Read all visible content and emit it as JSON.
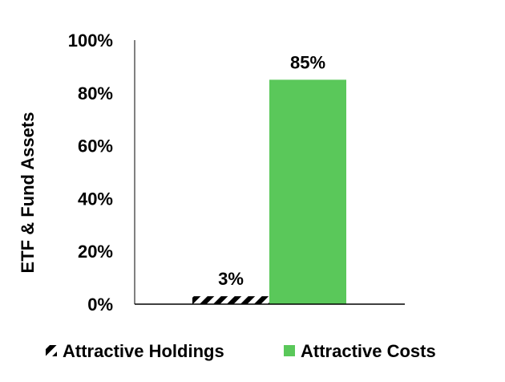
{
  "chart_data": {
    "type": "bar",
    "ylabel": "ETF & Fund Assets",
    "ylim": [
      0,
      100
    ],
    "y_ticks": [
      0,
      20,
      40,
      60,
      80,
      100
    ],
    "y_tick_labels": [
      "0%",
      "20%",
      "40%",
      "60%",
      "80%",
      "100%"
    ],
    "grid": false,
    "legend_position": "bottom",
    "series": [
      {
        "name": "Attractive Holdings",
        "value": 3,
        "data_label": "3%",
        "color": "#000000",
        "fill": "diagonal-stripe"
      },
      {
        "name": "Attractive Costs",
        "value": 85,
        "data_label": "85%",
        "color": "#5ac85a",
        "fill": "solid"
      }
    ]
  }
}
